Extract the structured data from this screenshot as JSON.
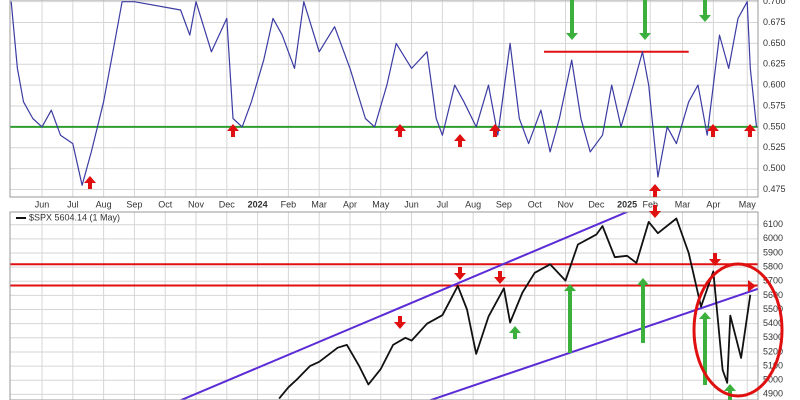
{
  "chart_data": [
    {
      "type": "line",
      "xlim": [
        -1.04,
        23.25
      ],
      "xticks": [
        {
          "value": 0,
          "label": "Jun"
        },
        {
          "value": 1,
          "label": "Jul"
        },
        {
          "value": 2,
          "label": "Aug"
        },
        {
          "value": 3,
          "label": "Sep"
        },
        {
          "value": 4,
          "label": "Oct"
        },
        {
          "value": 5,
          "label": "Nov"
        },
        {
          "value": 6,
          "label": "Dec"
        },
        {
          "value": 7,
          "label": "2024"
        },
        {
          "value": 8,
          "label": "Feb"
        },
        {
          "value": 9,
          "label": "Mar"
        },
        {
          "value": 10,
          "label": "Apr"
        },
        {
          "value": 11,
          "label": "May"
        },
        {
          "value": 12,
          "label": "Jun"
        },
        {
          "value": 13,
          "label": "Jul"
        },
        {
          "value": 14,
          "label": "Aug"
        },
        {
          "value": 15,
          "label": "Sep"
        },
        {
          "value": 16,
          "label": "Oct"
        },
        {
          "value": 17,
          "label": "Nov"
        },
        {
          "value": 18,
          "label": "Dec"
        },
        {
          "value": 19,
          "label": "2025"
        },
        {
          "value": 19.75,
          "label": "Feb"
        },
        {
          "value": 20.8,
          "label": "Mar"
        },
        {
          "value": 21.8,
          "label": "Apr"
        },
        {
          "value": 22.9,
          "label": "May"
        }
      ],
      "ylim": [
        0.466,
        0.702
      ],
      "yticks": [
        {
          "value": 0.475,
          "label": "0.475"
        },
        {
          "value": 0.5,
          "label": "0.500"
        },
        {
          "value": 0.525,
          "label": "0.525"
        },
        {
          "value": 0.55,
          "label": "0.550"
        },
        {
          "value": 0.575,
          "label": "0.575"
        },
        {
          "value": 0.6,
          "label": "0.600"
        },
        {
          "value": 0.625,
          "label": "0.625"
        },
        {
          "value": 0.65,
          "label": "0.650"
        },
        {
          "value": 0.675,
          "label": "0.675"
        },
        {
          "value": 0.7,
          "label": "0.700"
        }
      ],
      "grid": true,
      "series": [
        {
          "color": "#3b3ba3",
          "x": [
            -1.0,
            -0.8,
            -0.6,
            -0.3,
            0,
            0.3,
            0.6,
            1.0,
            1.3,
            1.6,
            2.0,
            2.3,
            2.6,
            3.0,
            4.5,
            4.8,
            5.0,
            5.5,
            6.0,
            6.2,
            6.5,
            6.8,
            7.2,
            7.5,
            7.8,
            8.2,
            8.5,
            9.0,
            9.5,
            10.0,
            10.5,
            10.8,
            11.2,
            11.5,
            12.0,
            12.5,
            12.8,
            13.0,
            13.4,
            13.7,
            14.1,
            14.5,
            14.8,
            15.2,
            15.5,
            15.8,
            16.2,
            16.5,
            16.8,
            17.2,
            17.5,
            17.8,
            18.2,
            18.5,
            18.8,
            19.2,
            19.5,
            19.7,
            20.0,
            20.3,
            20.6,
            21.0,
            21.3,
            21.6,
            22.0,
            22.3,
            22.6,
            22.9,
            23.0,
            23.2
          ],
          "values": [
            0.7,
            0.62,
            0.58,
            0.56,
            0.55,
            0.57,
            0.54,
            0.53,
            0.48,
            0.52,
            0.58,
            0.64,
            0.7,
            0.7,
            0.69,
            0.66,
            0.7,
            0.64,
            0.68,
            0.56,
            0.55,
            0.58,
            0.63,
            0.68,
            0.66,
            0.62,
            0.7,
            0.64,
            0.67,
            0.62,
            0.56,
            0.55,
            0.6,
            0.65,
            0.62,
            0.64,
            0.56,
            0.54,
            0.6,
            0.58,
            0.55,
            0.6,
            0.54,
            0.65,
            0.56,
            0.53,
            0.57,
            0.52,
            0.56,
            0.63,
            0.56,
            0.52,
            0.54,
            0.6,
            0.55,
            0.6,
            0.64,
            0.6,
            0.49,
            0.55,
            0.53,
            0.58,
            0.6,
            0.54,
            0.66,
            0.62,
            0.68,
            0.7,
            0.62,
            0.55
          ]
        }
      ],
      "hlines": [
        {
          "value": 0.55,
          "color": "#2e9e2e"
        },
        {
          "value": 0.64,
          "color": "#e01010",
          "x": [
            16.3,
            21.0
          ]
        }
      ]
    },
    {
      "type": "line",
      "xlim": [
        -1.04,
        23.25
      ],
      "ylim": [
        4860,
        6190
      ],
      "yticks": [
        4900,
        5000,
        5100,
        5200,
        5300,
        5400,
        5500,
        5600,
        5700,
        5800,
        5900,
        6000,
        6100
      ],
      "grid": true,
      "series": [
        {
          "name": "$SPX 5604.14 (1 May)",
          "color": "#111111",
          "x": [
            7.7,
            8.0,
            8.3,
            8.7,
            9.0,
            9.3,
            9.6,
            9.9,
            10.3,
            10.6,
            11.0,
            11.4,
            11.8,
            12.0,
            12.5,
            13.0,
            13.5,
            13.8,
            14.1,
            14.5,
            15.0,
            15.2,
            15.6,
            16.0,
            16.5,
            17.0,
            17.4,
            18.0,
            18.2,
            18.6,
            19.0,
            19.3,
            19.7,
            20.0,
            20.6,
            21.0,
            21.4,
            21.8,
            22.1,
            22.25,
            22.35,
            22.7,
            23.0
          ],
          "values": [
            4870,
            4950,
            5010,
            5100,
            5130,
            5180,
            5230,
            5250,
            5100,
            4970,
            5080,
            5250,
            5300,
            5280,
            5400,
            5460,
            5667,
            5500,
            5186,
            5450,
            5650,
            5408,
            5620,
            5760,
            5820,
            5705,
            5960,
            6030,
            6090,
            5870,
            5880,
            5830,
            6120,
            6040,
            6144,
            5900,
            5520,
            5770,
            5074,
            4982,
            5457,
            5158,
            5604
          ]
        }
      ],
      "hlines": [
        {
          "value": 5820,
          "color": "#e01010"
        },
        {
          "value": 5670,
          "color": "#e01010"
        }
      ],
      "trendlines": [
        {
          "color": "#5b2bd6",
          "x": [
            4.5,
            19.1
          ],
          "values": [
            4858,
            6200
          ]
        },
        {
          "color": "#5b2bd6",
          "x": [
            12.6,
            23.3
          ],
          "values": [
            4858,
            5650
          ]
        }
      ]
    }
  ]
}
